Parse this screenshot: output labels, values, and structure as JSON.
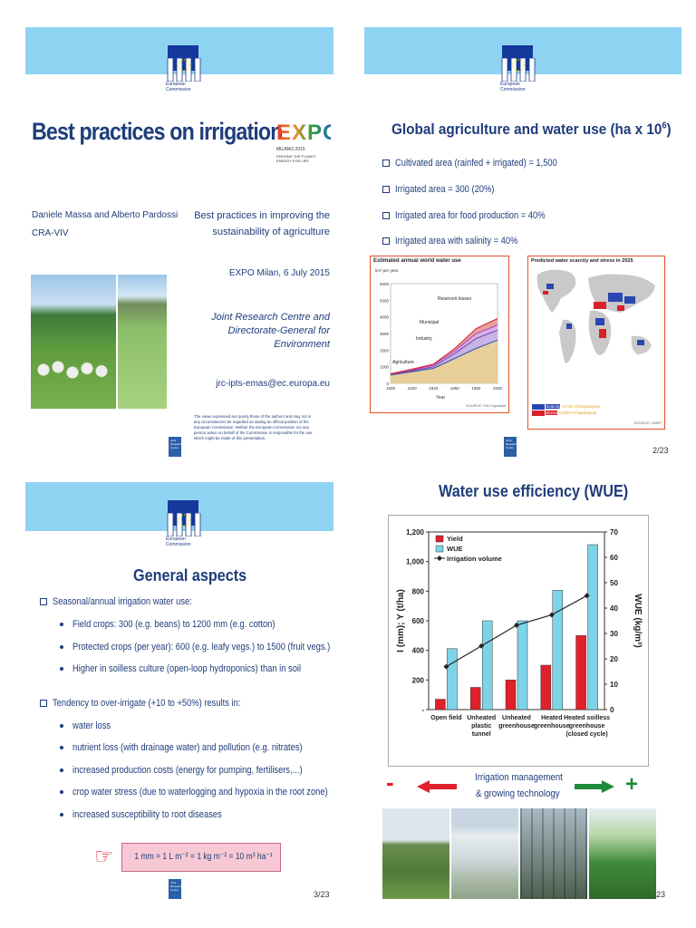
{
  "slide1": {
    "title": "Best practices on irrigation",
    "expo": {
      "letters": "EXPO",
      "city": "MILANO 2015",
      "tag1": "FEEDING THE PLANET",
      "tag2": "ENERGY FOR LIFE"
    },
    "authors": "Daniele Massa and Alberto Pardossi",
    "affiliation": "CRA-VIV",
    "subtitle1": "Best practices in improving the",
    "subtitle2": "sustainability of agriculture",
    "event": "EXPO Milan, 6 July 2015",
    "jrc1": "Joint Research Centre and",
    "jrc2": "Directorate-General for",
    "jrc3": "Environment",
    "email": "jrc-ipts-emas@ec.europa.eu",
    "disclaimer": [
      "The views expressed are purely those of the authors and may not in",
      "any circumstances be regarded as stating an official position of the",
      "European Commission. Neither the European Commission nor any",
      "person action on behalf of the Commission is responsible for the use",
      "which might be made of this presentation."
    ]
  },
  "brand": {
    "ec_line1": "European",
    "ec_line2": "Commission",
    "jrc_label": "Joint Research Centre"
  },
  "slide2": {
    "title": "Global agriculture and water use (ha x 10",
    "title_sup": "6",
    "title_end": ")",
    "bullets": [
      "Cultivated area (rainfed + irrigated) = 1,500",
      "Irrigated area = 300 (20%)",
      "Irrigated area for food production = 40%",
      "Irrigated area with salinity = 40%"
    ],
    "fig1_title": "Estimated annual world water use",
    "fig1_unit": "km³ per year",
    "fig1_xlabel": "Year",
    "fig1_source": "SOURCE: FAO Aquastat",
    "fig1_labels": [
      "Reservoir losses",
      "Municipal",
      "Industry",
      "Agriculture"
    ],
    "fig2_title": "Predicted water scarcity and stress in 2025",
    "fig2_legend": [
      "Scarcity",
      "Stress"
    ],
    "fig2_legend_vals": [
      "<1700 m³/capita/year",
      "<1000 m³/capita/year"
    ],
    "fig2_source": "SOURCE: UNEP",
    "page": "2/23"
  },
  "slide3": {
    "title": "General aspects",
    "bullet1": "Seasonal/annual irrigation water use:",
    "sub1": [
      "Field crops: 300 (e.g. beans) to 1200 mm (e.g. cotton)",
      "Protected crops (per year): 600 (e.g. leafy vegs.) to 1500 (fruit vegs.)",
      "Higher in soilless culture (open-loop hydroponics) than in soil"
    ],
    "bullet2": "Tendency to over-irrigate (+10 to +50%) results in:",
    "sub2": [
      "water loss",
      "nutrient loss (with drainage water) and pollution (e.g. nitrates)",
      "increased production costs (energy for pumping, fertilisers,...)",
      "crop water stress (due to waterlogging and hypoxia in the root zone)",
      "increased susceptibility to root diseases"
    ],
    "formula": "1 mm = 1 L m⁻² = 1 kg m⁻² = 10 m³ ha⁻¹",
    "hand_icon": "pointing-hand-icon",
    "page": "3/23"
  },
  "slide4": {
    "title": "Water use efficiency (WUE)",
    "irr_label1": "Irrigation management",
    "irr_label2": "& growing technology",
    "minus": "-",
    "plus": "+",
    "page": "23"
  },
  "chart_data": [
    {
      "type": "bar",
      "title": "Water use efficiency (WUE)",
      "categories": [
        "Open field",
        "Unheated plastic tunnel",
        "Unheated greenhouse",
        "Heated greenhouse",
        "Heated soilless greenhouse (closed cycle)"
      ],
      "category_lines": [
        [
          "Open field"
        ],
        [
          "Unheated",
          "plastic",
          "tunnel"
        ],
        [
          "Unheated",
          "greenhouse"
        ],
        [
          "Heated",
          "greenhouse"
        ],
        [
          "Heated soilless",
          "greenhouse",
          "(closed cycle)"
        ]
      ],
      "ylabel": "I (mm); Y (t/ha)",
      "y2label": "WUE (kg/m³)",
      "ylim": [
        0,
        1200
      ],
      "y2lim": [
        0,
        70
      ],
      "yticks": [
        "-",
        "200",
        "400",
        "600",
        "800",
        "1,000",
        "1,200"
      ],
      "y2ticks": [
        "0",
        "10",
        "20",
        "30",
        "40",
        "50",
        "60",
        "70"
      ],
      "series": [
        {
          "name": "Yield",
          "axis": "left",
          "kind": "bar",
          "color": "#e0202a",
          "values": [
            70,
            150,
            200,
            300,
            500
          ]
        },
        {
          "name": "WUE",
          "axis": "right",
          "kind": "bar",
          "color": "#7fd3e8",
          "values": [
            24,
            35,
            35,
            47,
            65
          ]
        },
        {
          "name": "Irrigation volume",
          "axis": "left",
          "kind": "line",
          "color": "#222222",
          "values": [
            290,
            430,
            570,
            640,
            770
          ]
        }
      ],
      "legend": "top-left"
    },
    {
      "type": "area",
      "title": "Estimated annual world water use",
      "ylabel": "km³ per year",
      "xlabel": "Year",
      "x": [
        1900,
        1920,
        1940,
        1960,
        1980,
        2000
      ],
      "xticks": [
        "1900",
        "1920",
        "1940",
        "1960",
        "1980",
        "2000"
      ],
      "yticks": [
        "0",
        "1000",
        "2000",
        "3000",
        "4000",
        "5000",
        "6000"
      ],
      "ylim": [
        0,
        6000
      ],
      "series": [
        {
          "name": "Agriculture",
          "values": [
            500,
            700,
            900,
            1500,
            2100,
            2600
          ]
        },
        {
          "name": "Industry",
          "values": [
            530,
            750,
            1000,
            1800,
            2700,
            3200
          ]
        },
        {
          "name": "Municipal",
          "values": [
            560,
            800,
            1100,
            1950,
            3000,
            3500
          ]
        },
        {
          "name": "Reservoir losses",
          "values": [
            580,
            850,
            1150,
            2100,
            3300,
            3900
          ]
        }
      ]
    }
  ]
}
